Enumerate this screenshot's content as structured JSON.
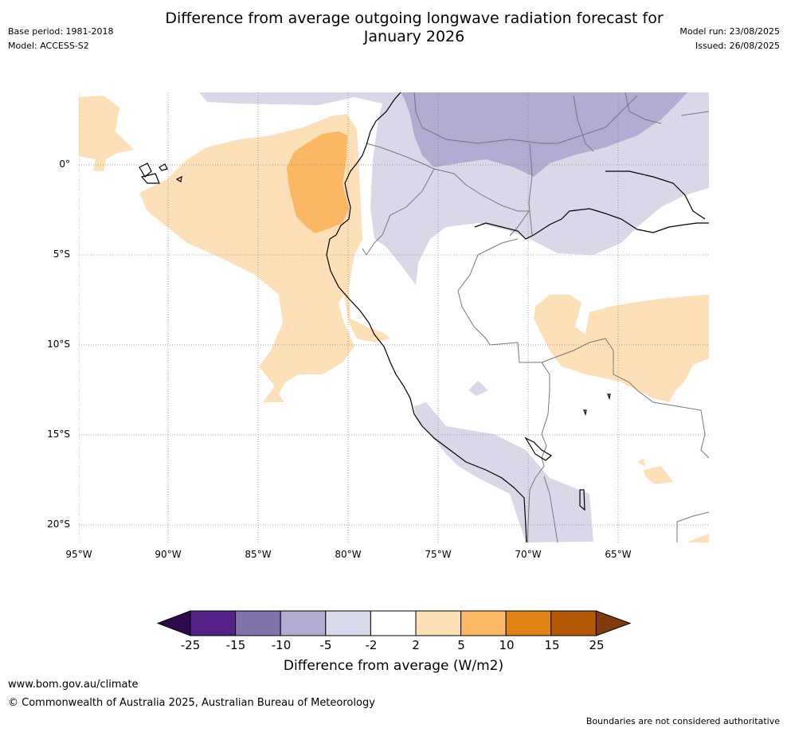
{
  "header": {
    "title_line1": "Difference from average outgoing longwave radiation forecast for",
    "title_line2": "January 2026",
    "base_period": "Base period: 1981-2018",
    "model": "Model: ACCESS-S2",
    "model_run": "Model run: 23/08/2025",
    "issued": "Issued: 26/08/2025"
  },
  "map": {
    "lat_labels": [
      "0°",
      "5°S",
      "10°S",
      "15°S",
      "20°S"
    ],
    "lon_labels": [
      "95°W",
      "90°W",
      "85°W",
      "80°W",
      "75°W",
      "70°W",
      "65°W"
    ],
    "shading_colors": {
      "purple_10_to_5": "#b2abd2",
      "purple_5_to_2": "#d8d8e8",
      "orange_2_to_5": "#fde0b8",
      "orange_5_to_10": "#fbb761"
    }
  },
  "colorbar": {
    "tick_labels": [
      "-25",
      "-15",
      "-10",
      "-5",
      "-2",
      "2",
      "5",
      "10",
      "15",
      "25"
    ],
    "colors": [
      "#2d0a4e",
      "#542287",
      "#8073ac",
      "#b2abd2",
      "#d8daeb",
      "#ffffff",
      "#fee0b6",
      "#fdb863",
      "#e08214",
      "#b35806",
      "#7f3b08"
    ],
    "title": "Difference from average (W/m2)"
  },
  "footer": {
    "url": "www.bom.gov.au/climate",
    "copyright": "© Commonwealth of Australia 2025, Australian Bureau of Meteorology",
    "note": "Boundaries are not considered authoritative"
  }
}
